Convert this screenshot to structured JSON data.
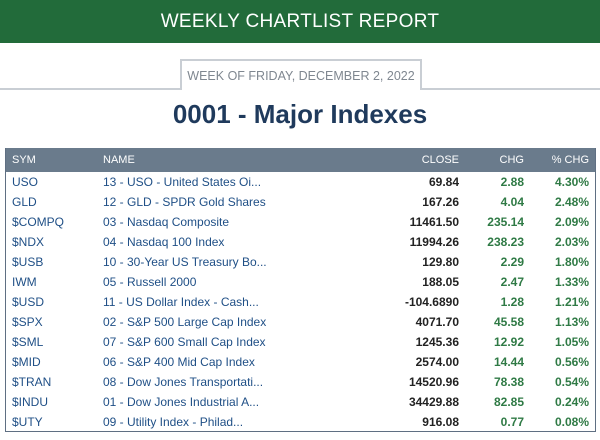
{
  "header": {
    "title": "WEEKLY CHARTLIST REPORT"
  },
  "week_label": "WEEK OF FRIDAY, DECEMBER 2, 2022",
  "page_title": "0001 - Major Indexes",
  "table": {
    "columns": [
      "SYM",
      "NAME",
      "CLOSE",
      "CHG",
      "% CHG"
    ],
    "rows": [
      {
        "sym": "USO",
        "name": "13 - USO - United States Oi...",
        "close": "69.84",
        "chg": "2.88",
        "pct": "4.30%"
      },
      {
        "sym": "GLD",
        "name": "12 - GLD - SPDR Gold Shares",
        "close": "167.26",
        "chg": "4.04",
        "pct": "2.48%"
      },
      {
        "sym": "$COMPQ",
        "name": "03 - Nasdaq Composite",
        "close": "11461.50",
        "chg": "235.14",
        "pct": "2.09%"
      },
      {
        "sym": "$NDX",
        "name": "04 - Nasdaq 100 Index",
        "close": "11994.26",
        "chg": "238.23",
        "pct": "2.03%"
      },
      {
        "sym": "$USB",
        "name": "10 - 30-Year US Treasury Bo...",
        "close": "129.80",
        "chg": "2.29",
        "pct": "1.80%"
      },
      {
        "sym": "IWM",
        "name": "05 - Russell 2000",
        "close": "188.05",
        "chg": "2.47",
        "pct": "1.33%"
      },
      {
        "sym": "$USD",
        "name": "11 - US Dollar Index - Cash...",
        "close": "-104.6890",
        "chg": "1.28",
        "pct": "1.21%"
      },
      {
        "sym": "$SPX",
        "name": "02 - S&P 500 Large Cap Index",
        "close": "4071.70",
        "chg": "45.58",
        "pct": "1.13%"
      },
      {
        "sym": "$SML",
        "name": "07 - S&P 600 Small Cap Index",
        "close": "1245.36",
        "chg": "12.92",
        "pct": "1.05%"
      },
      {
        "sym": "$MID",
        "name": "06 - S&P 400 Mid Cap Index",
        "close": "2574.00",
        "chg": "14.44",
        "pct": "0.56%"
      },
      {
        "sym": "$TRAN",
        "name": "08 - Dow Jones Transportati...",
        "close": "14520.96",
        "chg": "78.38",
        "pct": "0.54%"
      },
      {
        "sym": "$INDU",
        "name": "01 - Dow Jones Industrial A...",
        "close": "34429.88",
        "chg": "82.85",
        "pct": "0.24%"
      },
      {
        "sym": "$UTY",
        "name": "09 - Utility Index - Philad...",
        "close": "916.08",
        "chg": "0.77",
        "pct": "0.08%"
      }
    ]
  }
}
